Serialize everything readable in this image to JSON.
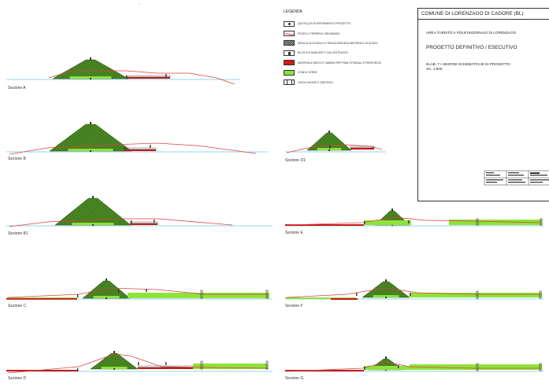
{
  "sections": [
    {
      "id": "A",
      "label": "Sezione A"
    },
    {
      "id": "B",
      "label": "Sezione B"
    },
    {
      "id": "B1",
      "label": "Sezione B1"
    },
    {
      "id": "C",
      "label": "Sezione C"
    },
    {
      "id": "D",
      "label": "Sezione D"
    },
    {
      "id": "D1",
      "label": "Sezione D1"
    },
    {
      "id": "E",
      "label": "Sezione E"
    },
    {
      "id": "F",
      "label": "Sezione F"
    },
    {
      "id": "G",
      "label": "Sezione G"
    }
  ],
  "legend": {
    "title": "LEGENDA",
    "items": [
      {
        "text": "QUOTA (LEI DI RIFERIMENTO PROGETTO",
        "symbol": "elevation-marker-icon"
      },
      {
        "text": "PROFILO TERRENO ORIGINARIO",
        "symbol": "red-line-icon"
      },
      {
        "text": "AREA DI ACCUMULO E RISAGOMATURA MATERIALE DI SCAVO",
        "symbol": "hatched-area-icon"
      },
      {
        "text": "BLOCHI E MANUFATTI CALCESTRUZZO",
        "symbol": "concrete-block-icon"
      },
      {
        "text": "MATERIALE ARIDO E SABBIA PER PIANI STRADALI E PARCHEGGI",
        "symbol": "red-fill-icon"
      },
      {
        "text": "ZONE A VERDE",
        "symbol": "green-fill-icon"
      },
      {
        "text": "CINTA VIGONE E CIMITERO",
        "symbol": "fence-icon"
      }
    ]
  },
  "title_block": {
    "header": "COMUNE DI LORENZAGO DI CADORE (BL)",
    "subtitle": "AREA TURISTICA POLIFUNZIONALE DI LORENZAGO",
    "phase": "PROGETTO DEFINITIVO / ESECUTIVO",
    "elab_line1": "ELAB. 7 • SEZIONI SCHEMATICHE DI PROGETTO",
    "elab_line2": "SC. 1:500"
  },
  "marks": {
    "top": "."
  },
  "colors": {
    "datum": "#8fd8ea",
    "terrain": "#e04040",
    "mound": "#4a8a24",
    "mound_hatch": "#2d5a14",
    "green_zone": "#8ee23a",
    "road": "#c81818"
  }
}
